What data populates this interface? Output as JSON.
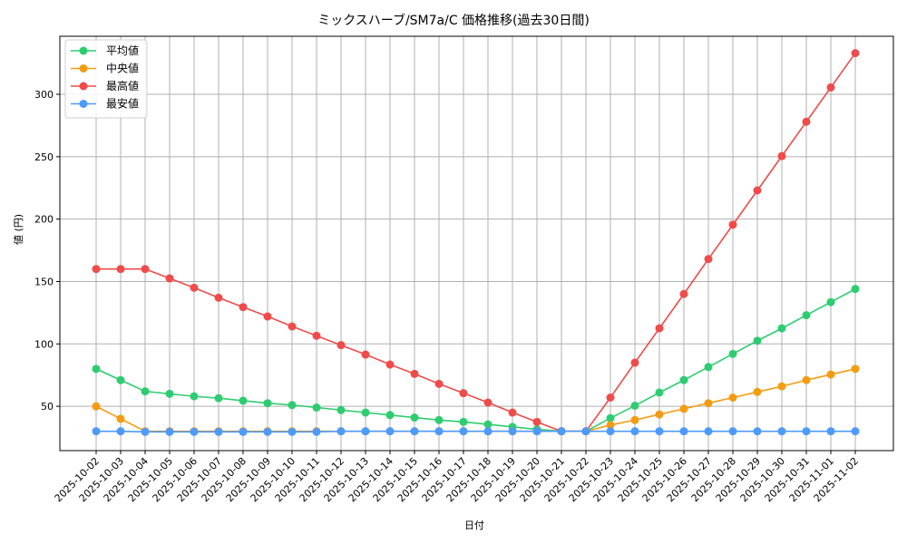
{
  "chart_data": {
    "type": "line",
    "title": "ミックスハーブ/SM7a/C 価格推移(過去30日間)",
    "xlabel": "日付",
    "ylabel": "値 (円)",
    "x": [
      "2025-10-02",
      "2025-10-03",
      "2025-10-04",
      "2025-10-05",
      "2025-10-06",
      "2025-10-07",
      "2025-10-08",
      "2025-10-09",
      "2025-10-10",
      "2025-10-11",
      "2025-10-12",
      "2025-10-13",
      "2025-10-14",
      "2025-10-15",
      "2025-10-16",
      "2025-10-17",
      "2025-10-18",
      "2025-10-19",
      "2025-10-20",
      "2025-10-21",
      "2025-10-22",
      "2025-10-23",
      "2025-10-24",
      "2025-10-25",
      "2025-10-26",
      "2025-10-27",
      "2025-10-28",
      "2025-10-29",
      "2025-10-30",
      "2025-10-31",
      "2025-11-01",
      "2025-11-02"
    ],
    "series": [
      {
        "name": "平均値",
        "color": "#2ecc71",
        "values": [
          80,
          71,
          62,
          60,
          58,
          56.5,
          54.5,
          52.5,
          51,
          49,
          47,
          45,
          43,
          41,
          39,
          37.5,
          35.5,
          33.5,
          31.5,
          30,
          30,
          40.5,
          50.5,
          61,
          71,
          81.5,
          92,
          102.5,
          112.5,
          123,
          133.5,
          144
        ]
      },
      {
        "name": "中央値",
        "color": "#f39c12",
        "values": [
          50,
          40,
          30,
          30,
          30,
          30,
          30,
          30,
          30,
          30,
          30,
          30,
          30,
          30,
          30,
          30,
          30,
          30,
          30,
          30,
          30,
          35,
          39,
          43.5,
          48,
          52.5,
          57,
          61.5,
          66,
          71,
          75.5,
          80
        ]
      },
      {
        "name": "最高値",
        "color": "#ef4b4b",
        "values": [
          160,
          160,
          160,
          152.5,
          145,
          137,
          129.5,
          122,
          114,
          106.5,
          99,
          91.5,
          83.5,
          76,
          68,
          60.5,
          53,
          45,
          37.5,
          30,
          30,
          57,
          85,
          112.5,
          140,
          168,
          195.5,
          223,
          250.5,
          278,
          305.5,
          333
        ]
      },
      {
        "name": "最安値",
        "color": "#4d9bf8",
        "values": [
          30,
          30,
          29.5,
          29.5,
          29.5,
          29.5,
          29.5,
          29.5,
          29.5,
          29.5,
          30,
          30,
          30,
          30,
          30,
          30,
          30,
          30,
          30,
          30,
          30,
          30,
          30,
          30,
          30,
          30,
          30,
          30,
          30,
          30,
          30,
          30
        ]
      }
    ],
    "yticks": [
      50,
      100,
      150,
      200,
      250,
      300
    ],
    "ylim": [
      14.5,
      346.5
    ],
    "grid": true,
    "legend_position": "upper left"
  }
}
